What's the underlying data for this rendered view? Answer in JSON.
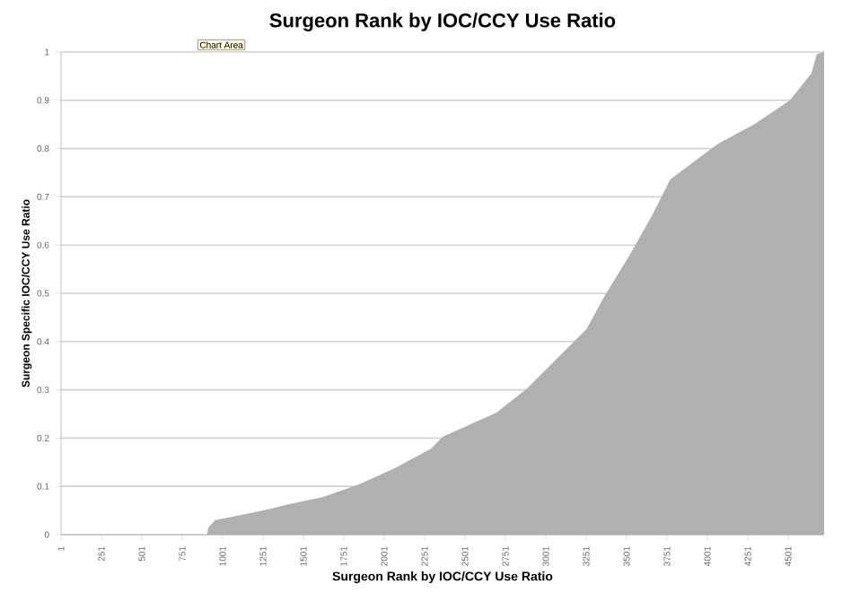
{
  "chart_data": {
    "type": "area",
    "title": "Surgeon Rank by IOC/CCY Use Ratio",
    "xlabel": "Surgeon Rank by IOC/CCY  Use Ratio",
    "ylabel": "Surgeon Specific IOC/CCY Use Ratio",
    "annotations": [
      "Chart Area"
    ],
    "x": [
      1,
      905,
      912,
      956,
      1179,
      1290,
      1401,
      1623,
      1845,
      2068,
      2290,
      2364,
      2697,
      2882,
      3067,
      3253,
      3364,
      3512,
      3660,
      3771,
      4067,
      4289,
      4512,
      4645,
      4678,
      4723
    ],
    "values": [
      0,
      0,
      0.015,
      0.03,
      0.045,
      0.053,
      0.062,
      0.078,
      0.104,
      0.138,
      0.178,
      0.203,
      0.253,
      0.302,
      0.364,
      0.426,
      0.494,
      0.575,
      0.662,
      0.736,
      0.81,
      0.85,
      0.9,
      0.956,
      0.996,
      1.0
    ],
    "color": "#b0b0b0",
    "xlim": [
      1,
      4723
    ],
    "xticks": [
      1,
      251,
      501,
      751,
      1001,
      1251,
      1501,
      1751,
      2001,
      2251,
      2501,
      2751,
      3001,
      3251,
      3501,
      3751,
      4001,
      4251,
      4501
    ],
    "ylim": [
      0,
      1
    ],
    "yticks": [
      0,
      0.1,
      0.2,
      0.3,
      0.4,
      0.5,
      0.6,
      0.7,
      0.8,
      0.9,
      1
    ],
    "grid": "y"
  }
}
